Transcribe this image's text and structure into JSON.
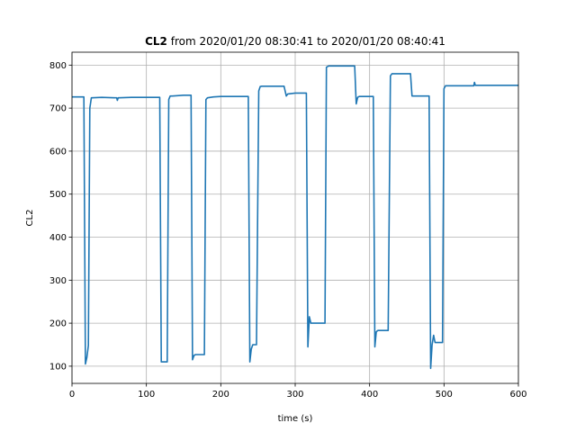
{
  "chart_data": {
    "type": "line",
    "title": {
      "bold": "CL2",
      "rest": " from 2020/01/20 08:30:41 to 2020/01/20 08:40:41"
    },
    "xlabel": "time (s)",
    "ylabel": "CL2",
    "xlim": [
      0,
      600
    ],
    "ylim": [
      60,
      830
    ],
    "xticks": [
      0,
      100,
      200,
      300,
      400,
      500,
      600
    ],
    "yticks": [
      100,
      200,
      300,
      400,
      500,
      600,
      700,
      800
    ],
    "grid": true,
    "series_color": "#1f77b4",
    "series": [
      {
        "x": [
          0,
          16,
          18,
          20,
          22,
          24,
          26,
          40,
          60,
          61,
          62,
          80,
          100,
          118,
          120,
          128,
          130,
          132,
          135,
          150,
          160,
          162,
          164,
          166,
          175,
          178,
          180,
          182,
          190,
          200,
          210,
          237,
          239,
          241,
          243,
          245,
          248,
          251,
          253,
          255,
          270,
          280,
          285,
          288,
          290,
          300,
          315,
          317,
          319,
          321,
          323,
          340,
          342,
          345,
          360,
          380,
          382,
          384,
          386,
          400,
          405,
          407,
          409,
          411,
          425,
          428,
          430,
          440,
          455,
          457,
          460,
          480,
          482,
          484,
          486,
          488,
          490,
          498,
          500,
          502,
          520,
          540,
          541,
          542,
          560,
          580,
          600
        ],
        "y": [
          726,
          726,
          105,
          120,
          148,
          700,
          724,
          725,
          724,
          718,
          724,
          725,
          725,
          725,
          110,
          110,
          720,
          728,
          728,
          730,
          730,
          115,
          125,
          127,
          127,
          127,
          720,
          724,
          726,
          727,
          727,
          727,
          110,
          140,
          150,
          150,
          150,
          740,
          750,
          751,
          751,
          751,
          751,
          728,
          733,
          735,
          735,
          145,
          215,
          200,
          200,
          200,
          795,
          798,
          798,
          798,
          710,
          725,
          727,
          727,
          727,
          145,
          180,
          183,
          183,
          775,
          780,
          780,
          780,
          728,
          728,
          728,
          95,
          150,
          172,
          155,
          155,
          155,
          745,
          752,
          752,
          752,
          760,
          753,
          753,
          753,
          753
        ]
      }
    ]
  }
}
